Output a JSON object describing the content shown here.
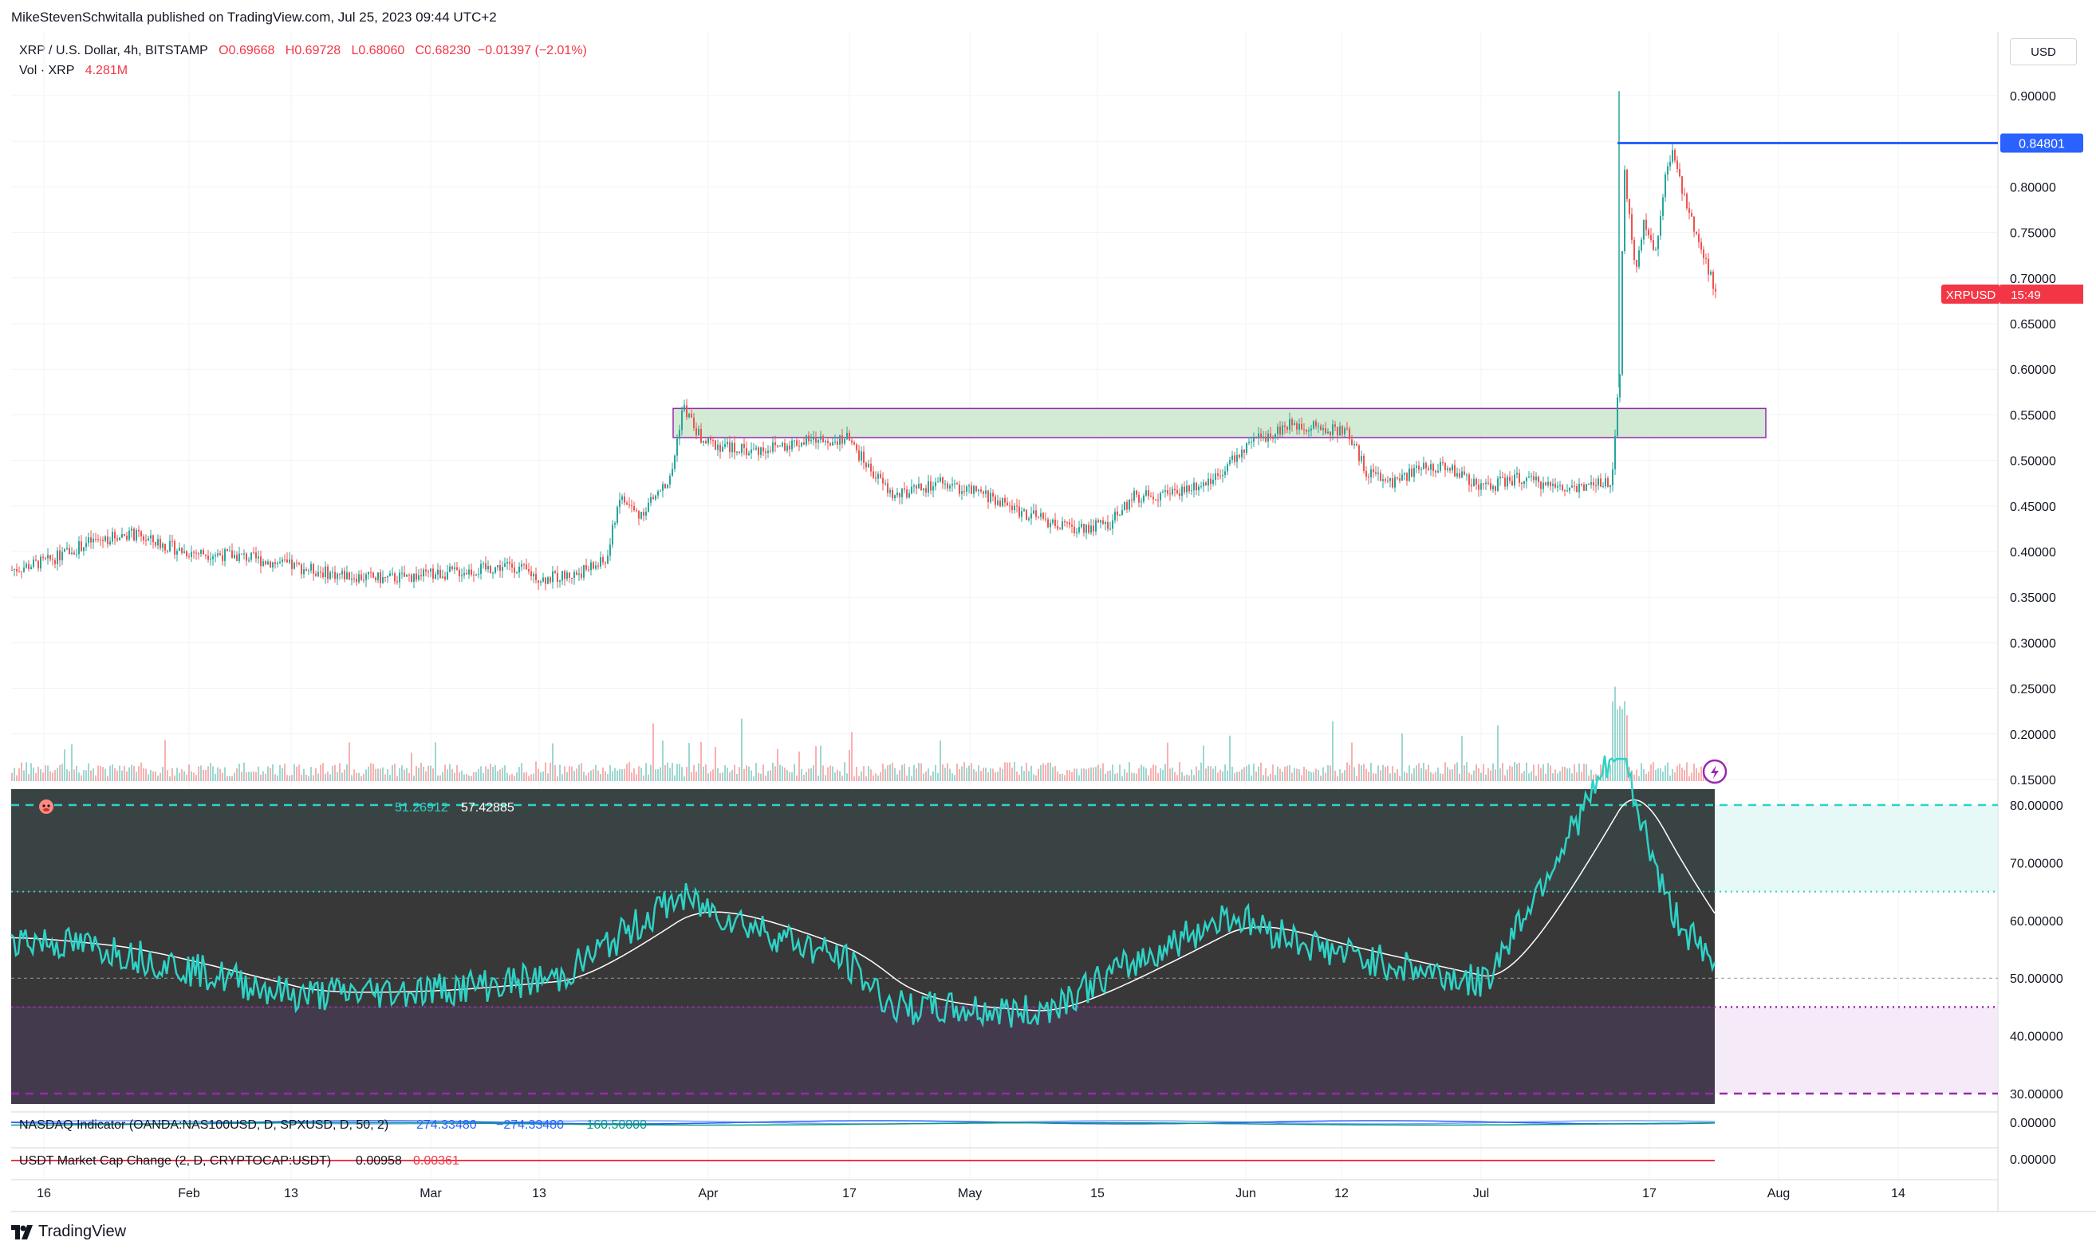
{
  "header": {
    "publish_line": "MikeStevenSchwitalla published on TradingView.com, Jul 25, 2023 09:44 UTC+2"
  },
  "legend": {
    "symbol": "XRP / U.S. Dollar, 4h, BITSTAMP",
    "open": "O0.69668",
    "high": "H0.69728",
    "low": "L0.68060",
    "close": "C0.68230",
    "change": "−0.01397 (−2.01%)",
    "vol_label": "Vol · XRP",
    "vol_value": "4.281M"
  },
  "scale": {
    "currency": "USD",
    "price_ticks": [
      "0.90000",
      "0.85000",
      "0.80000",
      "0.75000",
      "0.70000",
      "0.65000",
      "0.60000",
      "0.55000",
      "0.50000",
      "0.45000",
      "0.40000",
      "0.35000",
      "0.30000",
      "0.25000",
      "0.20000",
      "0.15000"
    ],
    "hline_label": "0.84801",
    "last_symbol": "XRPUSD",
    "last_time": "15:49",
    "rsi_ticks": [
      "80.00000",
      "70.00000",
      "60.00000",
      "50.00000",
      "40.00000",
      "30.00000"
    ],
    "nasdaq_tick": "0.00000",
    "usdt_tick": "0.00000"
  },
  "time_axis": [
    "16",
    "Feb",
    "13",
    "Mar",
    "13",
    "Apr",
    "17",
    "May",
    "15",
    "Jun",
    "12",
    "Jul",
    "17",
    "Aug",
    "14"
  ],
  "indicators": {
    "rsi_values": "51.26912",
    "rsi_ma": "57.42885",
    "nasdaq_label": "NASDAQ Indicator (OANDA:NAS100USD, D, SPXUSD, D, 50, 2)",
    "nasdaq_v1": "274.33480",
    "nasdaq_v2": "−274.33480",
    "nasdaq_v3": "−160.50000",
    "usdt_label": "USDT Market Cap Change (2, D, CRYPTOCAP:USDT)",
    "usdt_v1": "0.00958",
    "usdt_v2": "0.00361"
  },
  "footer": {
    "brand": "TradingView"
  },
  "colors": {
    "up": "#26a69a",
    "down": "#ef5350",
    "rsi": "#2ed3c6",
    "hline": "#2962ff",
    "zone_fill": "#c8e6c9",
    "zone_border": "#9c27b0",
    "last_badge": "#f23645"
  },
  "chart_data": {
    "type": "candlestick",
    "title": "XRP / U.S. Dollar, 4h, BITSTAMP",
    "ylabel": "USD",
    "ylim": [
      0.15,
      0.92
    ],
    "x": [
      "Jan 16",
      "Feb",
      "Feb 13",
      "Mar",
      "Mar 13",
      "Apr",
      "Apr 17",
      "May",
      "May 15",
      "Jun",
      "Jun 12",
      "Jul",
      "Jul 17"
    ],
    "series": [
      {
        "name": "XRP / U.S. Dollar",
        "values": [
          0.385,
          0.395,
          0.375,
          0.375,
          0.375,
          0.53,
          0.52,
          0.455,
          0.435,
          0.505,
          0.49,
          0.48,
          0.77
        ],
        "last": 0.6823
      },
      {
        "name": "Vol · XRP",
        "last": "4.281M"
      }
    ],
    "horizontal_line": 0.84801,
    "zone": [
      0.525,
      0.557
    ],
    "rsi_ylim": [
      30,
      80
    ],
    "rsi_levels": [
      80,
      65,
      50,
      45,
      30
    ],
    "rsi_series": [
      57,
      55,
      47,
      48,
      50,
      64,
      53,
      45,
      44,
      61,
      55,
      49,
      90,
      63,
      51.27
    ],
    "rsi_ma_last": 57.42885
  }
}
